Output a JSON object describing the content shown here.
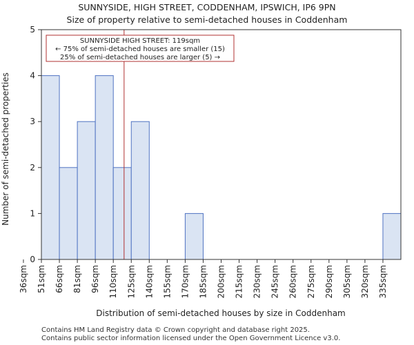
{
  "chart_data": {
    "type": "bar",
    "title": "SUNNYSIDE, HIGH STREET, CODDENHAM, IPSWICH, IP6 9PN",
    "subtitle": "Size of property relative to semi-detached houses in Coddenham",
    "xlabel": "Distribution of semi-detached houses by size in Coddenham",
    "ylabel": "Number of semi-detached properties",
    "categories": [
      "36sqm",
      "51sqm",
      "66sqm",
      "81sqm",
      "96sqm",
      "110sqm",
      "125sqm",
      "140sqm",
      "155sqm",
      "170sqm",
      "185sqm",
      "200sqm",
      "215sqm",
      "230sqm",
      "245sqm",
      "260sqm",
      "275sqm",
      "290sqm",
      "305sqm",
      "320sqm",
      "335sqm"
    ],
    "values": [
      0,
      4,
      2,
      3,
      4,
      2,
      3,
      0,
      0,
      1,
      0,
      0,
      0,
      0,
      0,
      0,
      0,
      0,
      0,
      0,
      1
    ],
    "ylim": [
      0,
      5
    ],
    "yticks": [
      "0",
      "1",
      "2",
      "3",
      "4",
      "5"
    ],
    "marker": {
      "value": 119,
      "label_lines": [
        "SUNNYSIDE HIGH STREET: 119sqm",
        "← 75% of semi-detached houses are smaller (15)",
        "25% of semi-detached houses are larger (5) →"
      ]
    },
    "colors": {
      "bar_fill": "#dae4f3",
      "bar_edge": "#4f73c2",
      "marker": "#b03030"
    }
  },
  "footer": {
    "line1": "Contains HM Land Registry data © Crown copyright and database right 2025.",
    "line2": "Contains public sector information licensed under the Open Government Licence v3.0."
  }
}
